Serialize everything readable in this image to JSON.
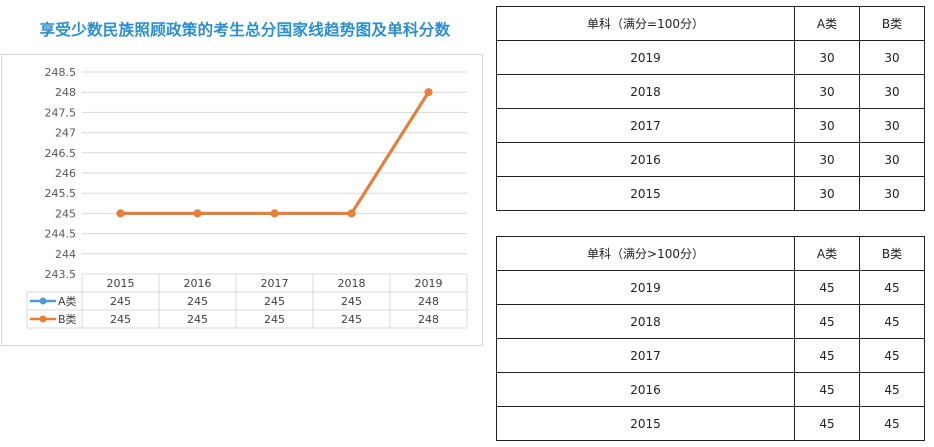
{
  "title": "享受少数民族照顾政策的考生总分国家线趋势图及单科分数",
  "chart_data": {
    "type": "line",
    "categories": [
      "2015",
      "2016",
      "2017",
      "2018",
      "2019"
    ],
    "series": [
      {
        "name": "A类",
        "values": [
          245,
          245,
          245,
          245,
          248
        ],
        "color": "#4f9bd6"
      },
      {
        "name": "B类",
        "values": [
          245,
          245,
          245,
          245,
          248
        ],
        "color": "#ed7d31"
      }
    ],
    "yticks": [
      "248.5",
      "248",
      "247.5",
      "247",
      "246.5",
      "246",
      "245.5",
      "245",
      "244.5",
      "244",
      "243.5"
    ],
    "ylim": [
      243.5,
      248.5
    ],
    "data_table": true,
    "grid": true
  },
  "tables": [
    {
      "header": [
        "单科（满分=100分）",
        "A类",
        "B类"
      ],
      "rows": [
        [
          "2019",
          "30",
          "30"
        ],
        [
          "2018",
          "30",
          "30"
        ],
        [
          "2017",
          "30",
          "30"
        ],
        [
          "2016",
          "30",
          "30"
        ],
        [
          "2015",
          "30",
          "30"
        ]
      ]
    },
    {
      "header": [
        "单科（满分>100分）",
        "A类",
        "B类"
      ],
      "rows": [
        [
          "2019",
          "45",
          "45"
        ],
        [
          "2018",
          "45",
          "45"
        ],
        [
          "2017",
          "45",
          "45"
        ],
        [
          "2016",
          "45",
          "45"
        ],
        [
          "2015",
          "45",
          "45"
        ]
      ]
    }
  ]
}
